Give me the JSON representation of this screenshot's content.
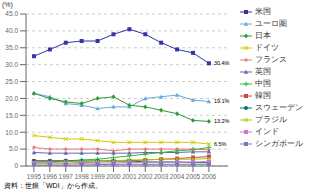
{
  "chart_data": {
    "type": "line",
    "ylabel": "(%)",
    "source": "資料：世銀「WDI」から作成。",
    "x": [
      1995,
      1996,
      1997,
      1998,
      1999,
      2000,
      2001,
      2002,
      2003,
      2004,
      2005,
      2006
    ],
    "xlim": [
      1994.5,
      2007.2
    ],
    "xticks": [
      1995,
      1996,
      1997,
      1998,
      1999,
      2000,
      2001,
      2002,
      2003,
      2004,
      2005,
      2006
    ],
    "ylim": [
      0,
      45
    ],
    "yticks": [
      0,
      {
        "value": 5,
        "label": "5.0"
      },
      {
        "value": 10,
        "label": "10.0"
      },
      {
        "value": 15,
        "label": "15.0"
      },
      {
        "value": 20,
        "label": "20.0"
      },
      {
        "value": 25,
        "label": "25.0"
      },
      {
        "value": 30,
        "label": "30.0"
      },
      {
        "value": 35,
        "label": "35.0"
      },
      {
        "value": 40,
        "label": "40.0"
      },
      {
        "value": 45,
        "label": "45.0"
      }
    ],
    "grid": "y",
    "legend": "right",
    "series": [
      {
        "name": "米国",
        "color": "#3333aa",
        "marker": "square",
        "values": [
          32.5,
          34.5,
          36.5,
          37.0,
          37.0,
          39.0,
          40.5,
          39.0,
          36.5,
          34.5,
          33.5,
          30.4
        ]
      },
      {
        "name": "ユーロ圏",
        "color": "#66aadd",
        "marker": "triangle",
        "values": [
          21.5,
          20.5,
          18.5,
          18.0,
          17.0,
          17.5,
          17.5,
          20.0,
          20.5,
          21.0,
          19.5,
          19.1
        ]
      },
      {
        "name": "日本",
        "color": "#339933",
        "marker": "diamond",
        "values": [
          21.5,
          20.0,
          19.0,
          18.5,
          20.0,
          20.5,
          18.0,
          17.5,
          16.5,
          15.5,
          13.5,
          13.2
        ]
      },
      {
        "name": "ドイツ",
        "color": "#cccc00",
        "marker": "x",
        "values": [
          9.0,
          8.5,
          8.0,
          8.0,
          7.5,
          7.0,
          7.0,
          7.0,
          7.0,
          7.0,
          7.0,
          6.5
        ]
      },
      {
        "name": "フランス",
        "color": "#ee7777",
        "marker": "star",
        "values": [
          5.5,
          5.0,
          5.0,
          5.0,
          5.0,
          4.5,
          5.0,
          5.0,
          5.0,
          5.0,
          5.0,
          4.8
        ]
      },
      {
        "name": "英国",
        "color": "#6666bb",
        "marker": "triangle",
        "values": [
          4.0,
          3.8,
          3.8,
          3.8,
          3.8,
          3.8,
          3.8,
          4.0,
          4.0,
          4.0,
          4.2,
          4.2
        ]
      },
      {
        "name": "中国",
        "color": "#33bb33",
        "marker": "plus",
        "values": [
          1.0,
          1.2,
          1.5,
          1.8,
          2.0,
          2.5,
          3.0,
          3.5,
          4.0,
          4.5,
          4.8,
          5.5
        ]
      },
      {
        "name": "韓国",
        "color": "#cc4444",
        "marker": "square",
        "values": [
          1.5,
          1.5,
          1.5,
          1.0,
          1.2,
          1.5,
          1.5,
          1.8,
          2.0,
          2.2,
          2.5,
          2.8
        ]
      },
      {
        "name": "スウェーデン",
        "color": "#007777",
        "marker": "circle",
        "values": [
          1.5,
          1.5,
          1.5,
          1.5,
          1.5,
          1.5,
          1.5,
          1.2,
          1.2,
          1.2,
          1.0,
          1.0
        ]
      },
      {
        "name": "ブラジル",
        "color": "#aacc00",
        "marker": "x",
        "values": [
          1.0,
          1.0,
          1.2,
          1.2,
          1.3,
          1.5,
          1.8,
          1.8,
          2.0,
          2.0,
          2.0,
          2.2
        ]
      },
      {
        "name": "インド",
        "color": "#cc77cc",
        "marker": "square",
        "values": [
          0.8,
          0.8,
          0.8,
          0.8,
          0.9,
          0.9,
          1.0,
          1.0,
          1.0,
          1.1,
          1.2,
          1.3
        ]
      },
      {
        "name": "シンガポール",
        "color": "#7777bb",
        "marker": "square",
        "values": [
          0.3,
          0.3,
          0.3,
          0.3,
          0.4,
          0.5,
          0.5,
          0.5,
          0.5,
          0.5,
          0.5,
          0.5
        ]
      }
    ],
    "annotations": [
      {
        "text": "30.4%",
        "x": 2006,
        "y": 30.4
      },
      {
        "text": "19.1%",
        "x": 2006,
        "y": 19.1
      },
      {
        "text": "13.2%",
        "x": 2006,
        "y": 13.2
      },
      {
        "text": "6.5%",
        "x": 2006,
        "y": 6.5
      }
    ]
  }
}
